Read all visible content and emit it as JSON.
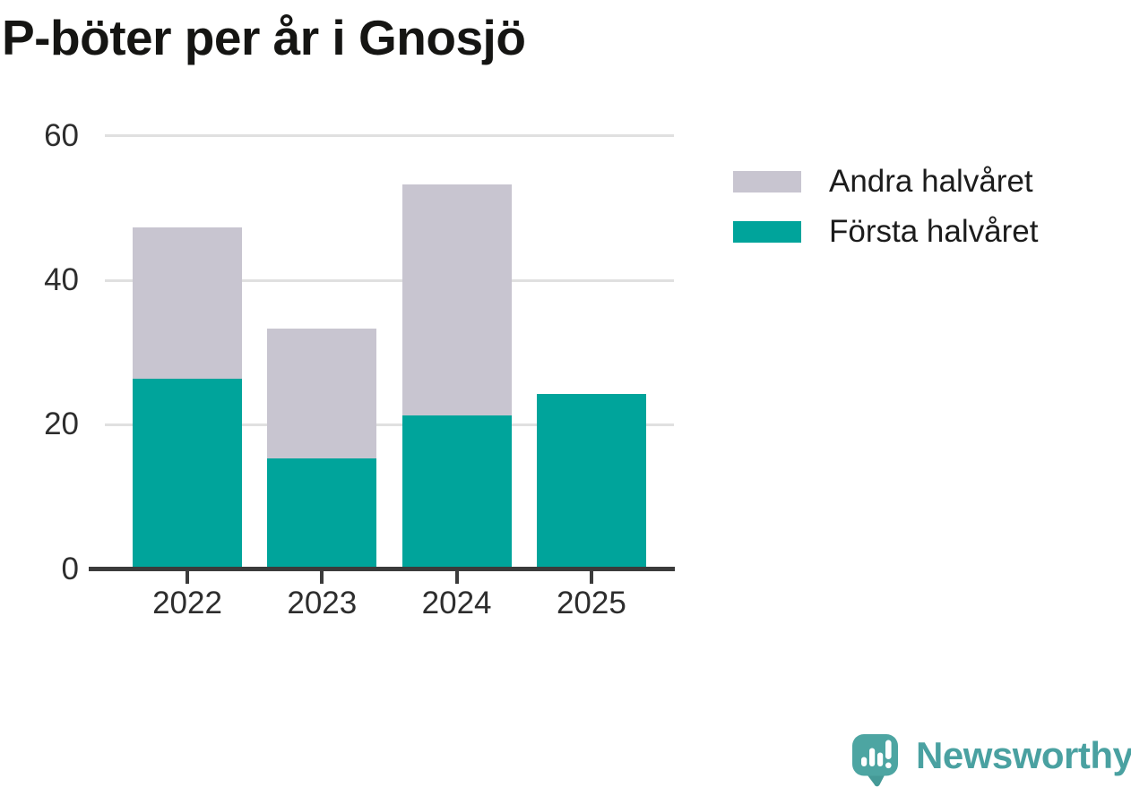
{
  "title": "P-böter per år i Gnosjö",
  "chart_data": {
    "type": "bar",
    "stacked": true,
    "title": "P-böter per år i Gnosjö",
    "categories": [
      "2022",
      "2023",
      "2024",
      "2025"
    ],
    "series": [
      {
        "name": "Andra halvåret",
        "color": "#c8c5d0",
        "values": [
          21,
          18,
          32,
          0
        ]
      },
      {
        "name": "Första halvåret",
        "color": "#00a49b",
        "values": [
          26,
          15,
          21,
          24
        ]
      }
    ],
    "stack_order_bottom_to_top": [
      "Första halvåret",
      "Andra halvåret"
    ],
    "totals": [
      47,
      33,
      53,
      24
    ],
    "xlabel": "",
    "ylabel": "",
    "ylim": [
      0,
      60
    ],
    "yticks": [
      0,
      20,
      40,
      60
    ],
    "grid": "horizontal",
    "legend_position": "right"
  },
  "colors": {
    "first_half": "#00a49b",
    "second_half": "#c8c5d0",
    "gridline": "#e0e0e0",
    "axis": "#3b3b3b",
    "tick_text": "#2d2d2d",
    "title_text": "#151513",
    "brand_teal": "#4aa1a1",
    "logo_teal": "#4da5a2",
    "logo_teal_dark": "#459a97",
    "background": "#ffffff"
  },
  "branding": {
    "name": "Newsworthy",
    "logo_icon": "speech-bubble-bar-chart-icon"
  }
}
